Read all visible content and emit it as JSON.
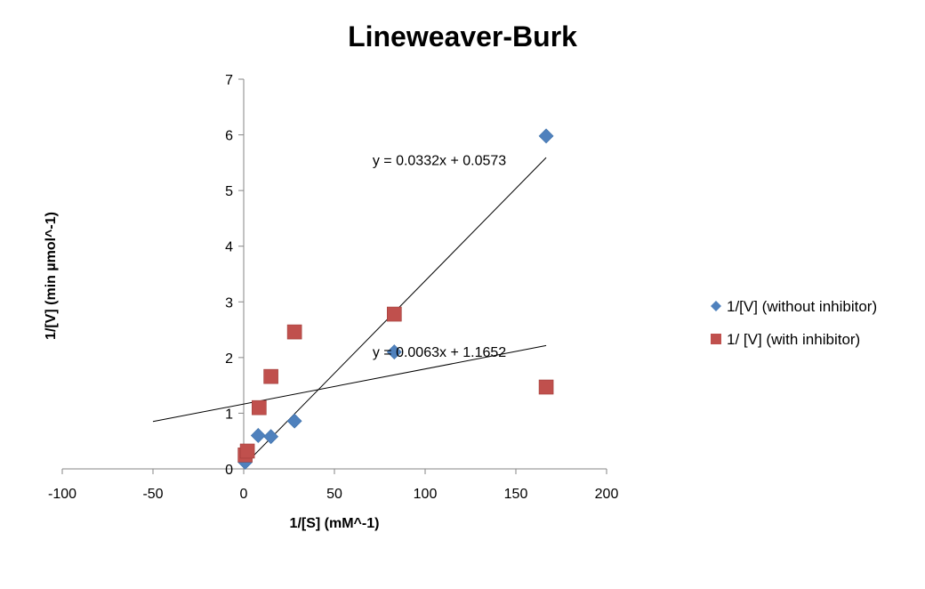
{
  "chart_data": {
    "type": "scatter",
    "title": "Lineweaver-Burk",
    "xlabel": "1/[S] (mM^-1)",
    "ylabel": "1/[V] (min µmol^-1)",
    "xlim": [
      -100,
      200
    ],
    "ylim": [
      0,
      7
    ],
    "xticks": [
      -100,
      -50,
      0,
      50,
      100,
      150,
      200
    ],
    "yticks": [
      0,
      1,
      2,
      3,
      4,
      5,
      6,
      7
    ],
    "grid": false,
    "legend_position": "right",
    "series": [
      {
        "name": "1/[V] (without inhibitor)",
        "marker": "diamond",
        "color": "#4F81BD",
        "points": [
          {
            "x": 0.8,
            "y": 0.12
          },
          {
            "x": 8,
            "y": 0.6
          },
          {
            "x": 15,
            "y": 0.58
          },
          {
            "x": 28,
            "y": 0.86
          },
          {
            "x": 83,
            "y": 2.1
          },
          {
            "x": 166.7,
            "y": 5.98
          }
        ],
        "trendline": {
          "slope": 0.0332,
          "intercept": 0.0573,
          "x_range": [
            0,
            166.7
          ],
          "equation": "y = 0.0332x + 0.0573",
          "label_anchor": {
            "x": 71,
            "y": 5.55
          }
        }
      },
      {
        "name": "1/ [V] (with inhibitor)",
        "marker": "square",
        "color": "#C0504D",
        "points": [
          {
            "x": 0.8,
            "y": 0.25
          },
          {
            "x": 2,
            "y": 0.32
          },
          {
            "x": 8.5,
            "y": 1.1
          },
          {
            "x": 15,
            "y": 1.66
          },
          {
            "x": 28,
            "y": 2.46
          },
          {
            "x": 83,
            "y": 2.78
          },
          {
            "x": 166.7,
            "y": 1.47
          }
        ],
        "trendline": {
          "slope": 0.0063,
          "intercept": 1.1652,
          "x_range": [
            -50,
            166.7
          ],
          "equation": "y = 0.0063x + 1.1652",
          "label_anchor": {
            "x": 71,
            "y": 2.11
          }
        }
      }
    ]
  }
}
